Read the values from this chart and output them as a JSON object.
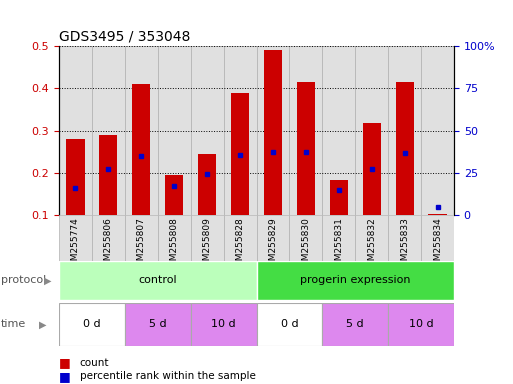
{
  "title": "GDS3495 / 353048",
  "samples": [
    "GSM255774",
    "GSM255806",
    "GSM255807",
    "GSM255808",
    "GSM255809",
    "GSM255828",
    "GSM255829",
    "GSM255830",
    "GSM255831",
    "GSM255832",
    "GSM255833",
    "GSM255834"
  ],
  "count_values": [
    0.28,
    0.29,
    0.41,
    0.195,
    0.245,
    0.39,
    0.49,
    0.415,
    0.182,
    0.317,
    0.415,
    0.102
  ],
  "percentile_values": [
    0.163,
    0.21,
    0.24,
    0.168,
    0.197,
    0.243,
    0.25,
    0.25,
    0.16,
    0.208,
    0.248,
    0.12
  ],
  "ylim": [
    0.1,
    0.5
  ],
  "y2lim": [
    0,
    100
  ],
  "yticks": [
    0.1,
    0.2,
    0.3,
    0.4,
    0.5
  ],
  "y2ticks": [
    0,
    25,
    50,
    75,
    100
  ],
  "y2tick_labels": [
    "0",
    "25",
    "50",
    "75",
    "100%"
  ],
  "protocol_groups": [
    {
      "label": "control",
      "start": 0,
      "end": 6,
      "color": "#bbffbb"
    },
    {
      "label": "progerin expression",
      "start": 6,
      "end": 12,
      "color": "#44dd44"
    }
  ],
  "time_groups": [
    {
      "label": "0 d",
      "start": 0,
      "end": 2,
      "color": "#ffffff"
    },
    {
      "label": "5 d",
      "start": 2,
      "end": 4,
      "color": "#dd88ee"
    },
    {
      "label": "10 d",
      "start": 4,
      "end": 6,
      "color": "#dd88ee"
    },
    {
      "label": "0 d",
      "start": 6,
      "end": 8,
      "color": "#ffffff"
    },
    {
      "label": "5 d",
      "start": 8,
      "end": 10,
      "color": "#dd88ee"
    },
    {
      "label": "10 d",
      "start": 10,
      "end": 12,
      "color": "#dd88ee"
    }
  ],
  "bar_color": "#cc0000",
  "dot_color": "#0000cc",
  "bar_width": 0.55,
  "bg_color": "#ffffff",
  "label_color_left": "#cc0000",
  "label_color_right": "#0000cc",
  "col_bg": "#e0e0e0",
  "col_edge": "#b0b0b0"
}
